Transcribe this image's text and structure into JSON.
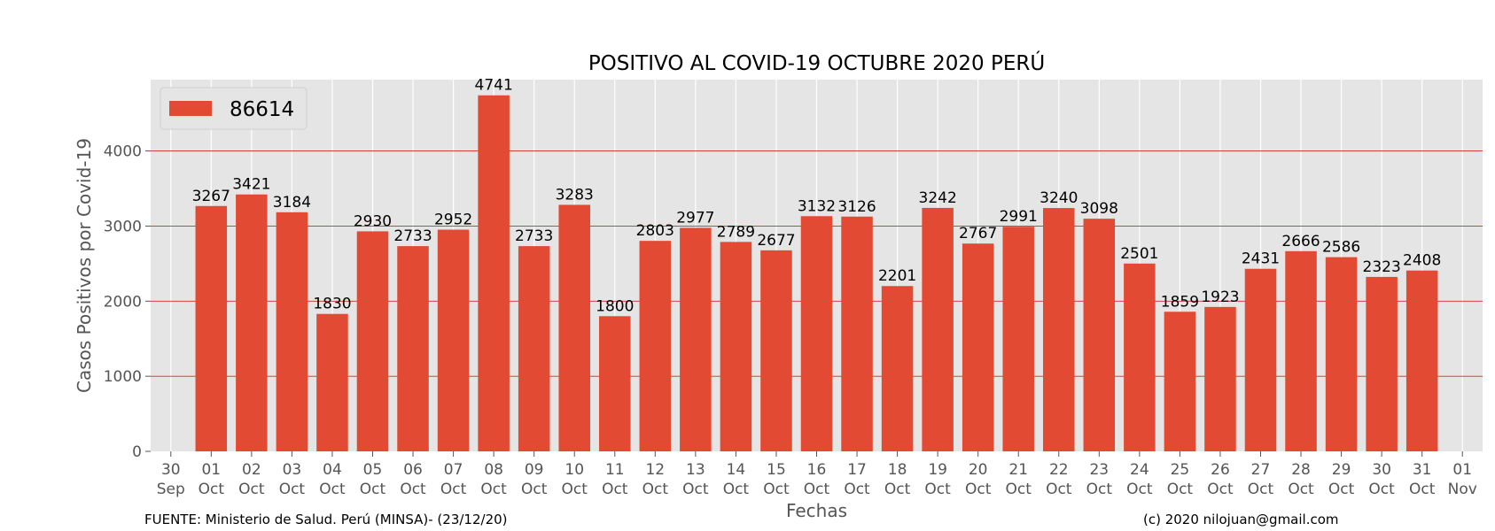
{
  "chart_data": {
    "type": "bar",
    "title": "POSITIVO AL COVID-19 OCTUBRE 2020 PERÚ",
    "xlabel": "Fechas",
    "ylabel": "Casos Positivos por Covid-19",
    "ylim": [
      0,
      4950
    ],
    "yticks": [
      0,
      1000,
      2000,
      3000,
      4000
    ],
    "grid": true,
    "legend_position": "top-left",
    "bar_color": "#E24A33",
    "plot_background": "#E5E5E5",
    "series": [
      {
        "name": "86614",
        "values": [
          3267,
          3421,
          3184,
          1830,
          2930,
          2733,
          2952,
          4741,
          2733,
          3283,
          1800,
          2803,
          2977,
          2789,
          2677,
          3132,
          3126,
          2201,
          3242,
          2767,
          2991,
          3240,
          3098,
          2501,
          1859,
          1923,
          2431,
          2666,
          2586,
          2323,
          2408
        ]
      }
    ],
    "categories": [
      "01 Oct",
      "02 Oct",
      "03 Oct",
      "04 Oct",
      "05 Oct",
      "06 Oct",
      "07 Oct",
      "08 Oct",
      "09 Oct",
      "10 Oct",
      "11 Oct",
      "12 Oct",
      "13 Oct",
      "14 Oct",
      "15 Oct",
      "16 Oct",
      "17 Oct",
      "18 Oct",
      "19 Oct",
      "20 Oct",
      "21 Oct",
      "22 Oct",
      "23 Oct",
      "24 Oct",
      "25 Oct",
      "26 Oct",
      "27 Oct",
      "28 Oct",
      "29 Oct",
      "30 Oct",
      "31 Oct"
    ],
    "x_ticks": [
      {
        "day": "30",
        "month": "Sep"
      },
      {
        "day": "01",
        "month": "Oct"
      },
      {
        "day": "02",
        "month": "Oct"
      },
      {
        "day": "03",
        "month": "Oct"
      },
      {
        "day": "04",
        "month": "Oct"
      },
      {
        "day": "05",
        "month": "Oct"
      },
      {
        "day": "06",
        "month": "Oct"
      },
      {
        "day": "07",
        "month": "Oct"
      },
      {
        "day": "08",
        "month": "Oct"
      },
      {
        "day": "09",
        "month": "Oct"
      },
      {
        "day": "10",
        "month": "Oct"
      },
      {
        "day": "11",
        "month": "Oct"
      },
      {
        "day": "12",
        "month": "Oct"
      },
      {
        "day": "13",
        "month": "Oct"
      },
      {
        "day": "14",
        "month": "Oct"
      },
      {
        "day": "15",
        "month": "Oct"
      },
      {
        "day": "16",
        "month": "Oct"
      },
      {
        "day": "17",
        "month": "Oct"
      },
      {
        "day": "18",
        "month": "Oct"
      },
      {
        "day": "19",
        "month": "Oct"
      },
      {
        "day": "20",
        "month": "Oct"
      },
      {
        "day": "21",
        "month": "Oct"
      },
      {
        "day": "22",
        "month": "Oct"
      },
      {
        "day": "23",
        "month": "Oct"
      },
      {
        "day": "24",
        "month": "Oct"
      },
      {
        "day": "25",
        "month": "Oct"
      },
      {
        "day": "26",
        "month": "Oct"
      },
      {
        "day": "27",
        "month": "Oct"
      },
      {
        "day": "28",
        "month": "Oct"
      },
      {
        "day": "29",
        "month": "Oct"
      },
      {
        "day": "30",
        "month": "Oct"
      },
      {
        "day": "31",
        "month": "Oct"
      },
      {
        "day": "01",
        "month": "Nov"
      }
    ]
  },
  "footer": {
    "source": "FUENTE: Ministerio de Salud. Perú (MINSA)- (23/12/20)",
    "credit": "(c) 2020 nilojuan@gmail.com"
  }
}
